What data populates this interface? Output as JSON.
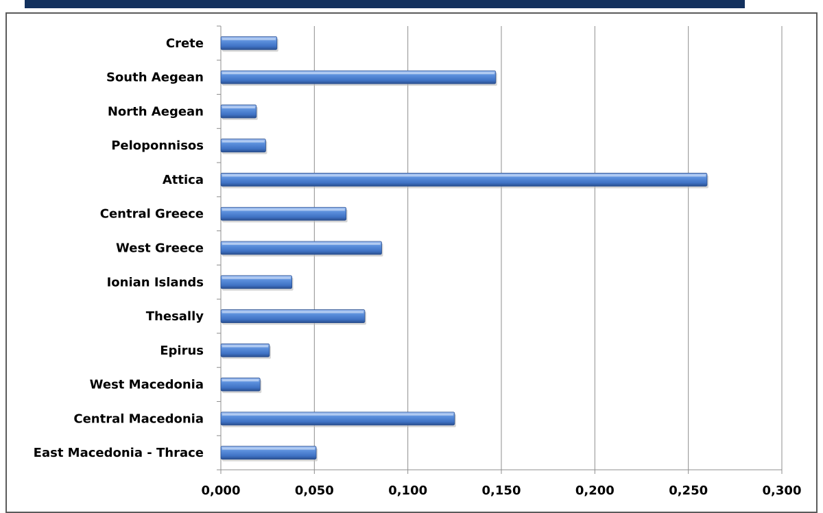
{
  "chart_data": {
    "type": "bar",
    "orientation": "horizontal",
    "categories": [
      "Crete",
      "South Aegean",
      "North Aegean",
      "Peloponnisos",
      "Attica",
      "Central  Greece",
      "West Greece",
      "Ionian Islands",
      "Thesally",
      "Epirus",
      "West Macedonia",
      "Central Macedonia",
      "East Macedonia - Thrace"
    ],
    "values": [
      0.03,
      0.147,
      0.019,
      0.024,
      0.26,
      0.067,
      0.086,
      0.038,
      0.077,
      0.026,
      0.021,
      0.125,
      0.051
    ],
    "xlim": [
      0,
      0.3
    ],
    "ticks": [
      0,
      0.05,
      0.1,
      0.15,
      0.2,
      0.25,
      0.3
    ],
    "tick_labels": [
      "0,000",
      "0,050",
      "0,100",
      "0,150",
      "0,200",
      "0,250",
      "0,300"
    ],
    "grid": "vertical",
    "bar_color": "#4a7fd0",
    "title": "",
    "xlabel": "",
    "ylabel": ""
  }
}
